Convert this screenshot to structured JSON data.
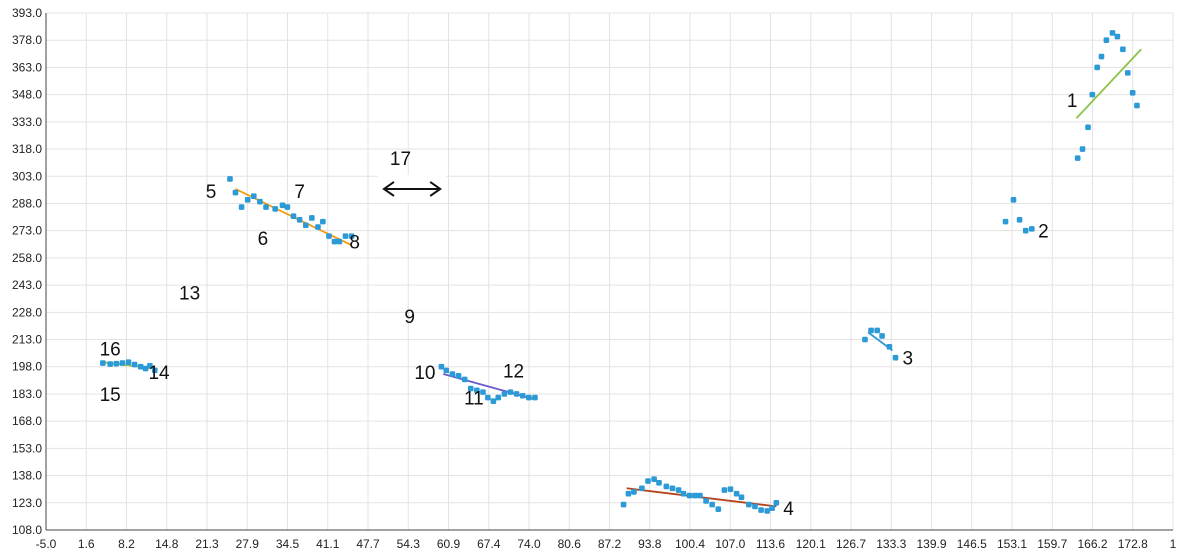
{
  "chart_data": {
    "type": "scatter",
    "title": "",
    "xlabel": "",
    "ylabel": "",
    "xlim": [
      -5.0,
      179.4
    ],
    "ylim": [
      108.0,
      393.0
    ],
    "grid": true,
    "legend": "none",
    "x_ticks": [
      "-5.0",
      "1.6",
      "8.2",
      "14.8",
      "21.3",
      "27.9",
      "34.5",
      "41.1",
      "47.7",
      "54.3",
      "60.9",
      "67.4",
      "74.0",
      "80.6",
      "87.2",
      "93.8",
      "100.4",
      "107.0",
      "113.6",
      "120.1",
      "126.7",
      "133.3",
      "139.9",
      "146.5",
      "153.1",
      "159.7",
      "166.2",
      "172.8",
      "1"
    ],
    "y_ticks": [
      "108.0",
      "123.0",
      "138.0",
      "153.0",
      "168.0",
      "183.0",
      "198.0",
      "213.0",
      "228.0",
      "243.0",
      "258.0",
      "273.0",
      "288.0",
      "303.0",
      "318.0",
      "333.0",
      "348.0",
      "363.0",
      "378.0",
      "393.0"
    ],
    "point_color": "#2b9ad6",
    "series": [
      {
        "points": [
          [
            4.3,
            200
          ],
          [
            5.5,
            199.5
          ],
          [
            6.5,
            199.7
          ],
          [
            7.5,
            200
          ],
          [
            8.5,
            200.5
          ],
          [
            9.5,
            199.2
          ],
          [
            10.5,
            198
          ],
          [
            11.3,
            197
          ],
          [
            12.0,
            198.5
          ],
          [
            12.8,
            196
          ]
        ]
      },
      {
        "points": [
          [
            25.1,
            301.5
          ],
          [
            26.0,
            294
          ],
          [
            27.0,
            286
          ],
          [
            28.0,
            290
          ],
          [
            29.0,
            292
          ],
          [
            30.0,
            289
          ],
          [
            31.0,
            286
          ],
          [
            32.5,
            285
          ],
          [
            33.7,
            287
          ],
          [
            34.5,
            286
          ],
          [
            35.5,
            281
          ],
          [
            36.5,
            279
          ],
          [
            37.5,
            276
          ],
          [
            38.5,
            280
          ],
          [
            39.5,
            275
          ],
          [
            40.3,
            278
          ],
          [
            41.3,
            270
          ],
          [
            42.2,
            267
          ],
          [
            43.0,
            267
          ],
          [
            44.0,
            270
          ],
          [
            45.0,
            270
          ]
        ]
      },
      {
        "points": [
          [
            59.7,
            198
          ],
          [
            60.5,
            196
          ],
          [
            61.5,
            194
          ],
          [
            62.5,
            193
          ],
          [
            63.5,
            191
          ],
          [
            64.5,
            186
          ],
          [
            65.5,
            185
          ],
          [
            66.5,
            184
          ],
          [
            67.3,
            181
          ],
          [
            68.2,
            179
          ],
          [
            69.0,
            181
          ],
          [
            70.0,
            183
          ],
          [
            71.0,
            184
          ],
          [
            72.0,
            183
          ],
          [
            73.0,
            182
          ],
          [
            74.0,
            181
          ],
          [
            75.0,
            181
          ]
        ]
      },
      {
        "points": [
          [
            89.5,
            122
          ],
          [
            90.3,
            128
          ],
          [
            91.2,
            129
          ],
          [
            92.5,
            131
          ],
          [
            93.5,
            135
          ],
          [
            94.5,
            136
          ],
          [
            95.3,
            134
          ],
          [
            96.5,
            132
          ],
          [
            97.5,
            131
          ],
          [
            98.5,
            130
          ],
          [
            99.3,
            128
          ],
          [
            100.3,
            127
          ],
          [
            101.2,
            127
          ],
          [
            102.0,
            127
          ],
          [
            103.0,
            124
          ],
          [
            104.0,
            122
          ],
          [
            105.0,
            119.5
          ],
          [
            106.0,
            130
          ],
          [
            107.0,
            130.5
          ],
          [
            108.0,
            128
          ],
          [
            108.8,
            126
          ],
          [
            110.0,
            122
          ],
          [
            111.0,
            121
          ],
          [
            112.0,
            119
          ],
          [
            113.0,
            118.5
          ],
          [
            113.8,
            120
          ],
          [
            114.5,
            123
          ]
        ]
      },
      {
        "points": [
          [
            129.0,
            213
          ],
          [
            130.0,
            218
          ],
          [
            131.0,
            218
          ],
          [
            131.8,
            215
          ],
          [
            133.0,
            209
          ],
          [
            134.0,
            203
          ]
        ]
      },
      {
        "points": [
          [
            152.0,
            278
          ],
          [
            153.3,
            290
          ],
          [
            154.3,
            279
          ],
          [
            155.3,
            273
          ],
          [
            156.3,
            274
          ]
        ]
      },
      {
        "points": [
          [
            163.8,
            313
          ],
          [
            164.6,
            318
          ],
          [
            165.5,
            330
          ],
          [
            166.2,
            348
          ],
          [
            167.0,
            363
          ],
          [
            167.7,
            369
          ],
          [
            168.5,
            378
          ],
          [
            169.5,
            382
          ],
          [
            170.3,
            380
          ],
          [
            171.2,
            373
          ],
          [
            172.0,
            360
          ],
          [
            172.8,
            349
          ],
          [
            173.5,
            342
          ]
        ]
      }
    ],
    "trendlines": [
      {
        "color": "#8bc34a",
        "from": [
          4.3,
          200.5
        ],
        "to": [
          12.8,
          197
        ]
      },
      {
        "color": "#f39c12",
        "from": [
          26.0,
          296
        ],
        "to": [
          45.0,
          265
        ]
      },
      {
        "color": "#6a5acd",
        "from": [
          60.0,
          194
        ],
        "to": [
          75.0,
          180
        ]
      },
      {
        "color": "#b5441e",
        "from": [
          90.0,
          131
        ],
        "to": [
          114.5,
          121
        ]
      },
      {
        "color": "#2b9ad6",
        "from": [
          129.5,
          217
        ],
        "to": [
          133.5,
          207
        ]
      },
      {
        "color": "#8bc34a",
        "from": [
          163.6,
          335
        ],
        "to": [
          174.2,
          373
        ]
      }
    ],
    "annotations": [
      {
        "text": "1",
        "x": 162.9,
        "y": 345
      },
      {
        "text": "2",
        "x": 158.2,
        "y": 273
      },
      {
        "text": "3",
        "x": 136.0,
        "y": 203
      },
      {
        "text": "4",
        "x": 116.5,
        "y": 120
      },
      {
        "text": "5",
        "x": 22.0,
        "y": 295
      },
      {
        "text": "6",
        "x": 30.5,
        "y": 269
      },
      {
        "text": "7",
        "x": 36.5,
        "y": 295
      },
      {
        "text": "8",
        "x": 45.5,
        "y": 267
      },
      {
        "text": "9",
        "x": 54.5,
        "y": 226
      },
      {
        "text": "10",
        "x": 57.0,
        "y": 195
      },
      {
        "text": "11",
        "x": 65.0,
        "y": 181
      },
      {
        "text": "12",
        "x": 71.5,
        "y": 196
      },
      {
        "text": "13",
        "x": 18.5,
        "y": 239
      },
      {
        "text": "14",
        "x": 13.5,
        "y": 195
      },
      {
        "text": "15",
        "x": 5.5,
        "y": 183
      },
      {
        "text": "16",
        "x": 5.5,
        "y": 208
      },
      {
        "text": "17",
        "x": 53.0,
        "y": 313
      }
    ],
    "arrow": {
      "from": [
        50.3,
        296
      ],
      "to": [
        59.5,
        296
      ]
    }
  }
}
